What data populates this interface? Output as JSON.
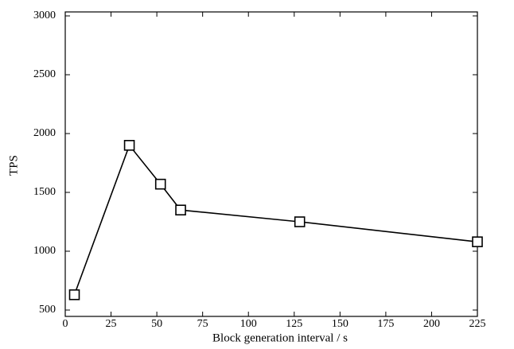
{
  "chart_data": {
    "type": "line",
    "x_label": "Block generation interval / s",
    "y_label": "TPS",
    "series": [
      {
        "name": "TPS",
        "color": "#000000",
        "marker": "square",
        "x": [
          5,
          35,
          52,
          63,
          128,
          225
        ],
        "values": [
          630,
          1900,
          1570,
          1350,
          1250,
          1080
        ]
      }
    ],
    "xlim": [
      0,
      225
    ],
    "xticks": [
      0,
      25,
      50,
      75,
      100,
      125,
      150,
      175,
      200,
      225
    ],
    "ylim": [
      500,
      3000
    ],
    "yticks": [
      500,
      1000,
      1500,
      2000,
      2500,
      3000
    ],
    "grid": false
  }
}
